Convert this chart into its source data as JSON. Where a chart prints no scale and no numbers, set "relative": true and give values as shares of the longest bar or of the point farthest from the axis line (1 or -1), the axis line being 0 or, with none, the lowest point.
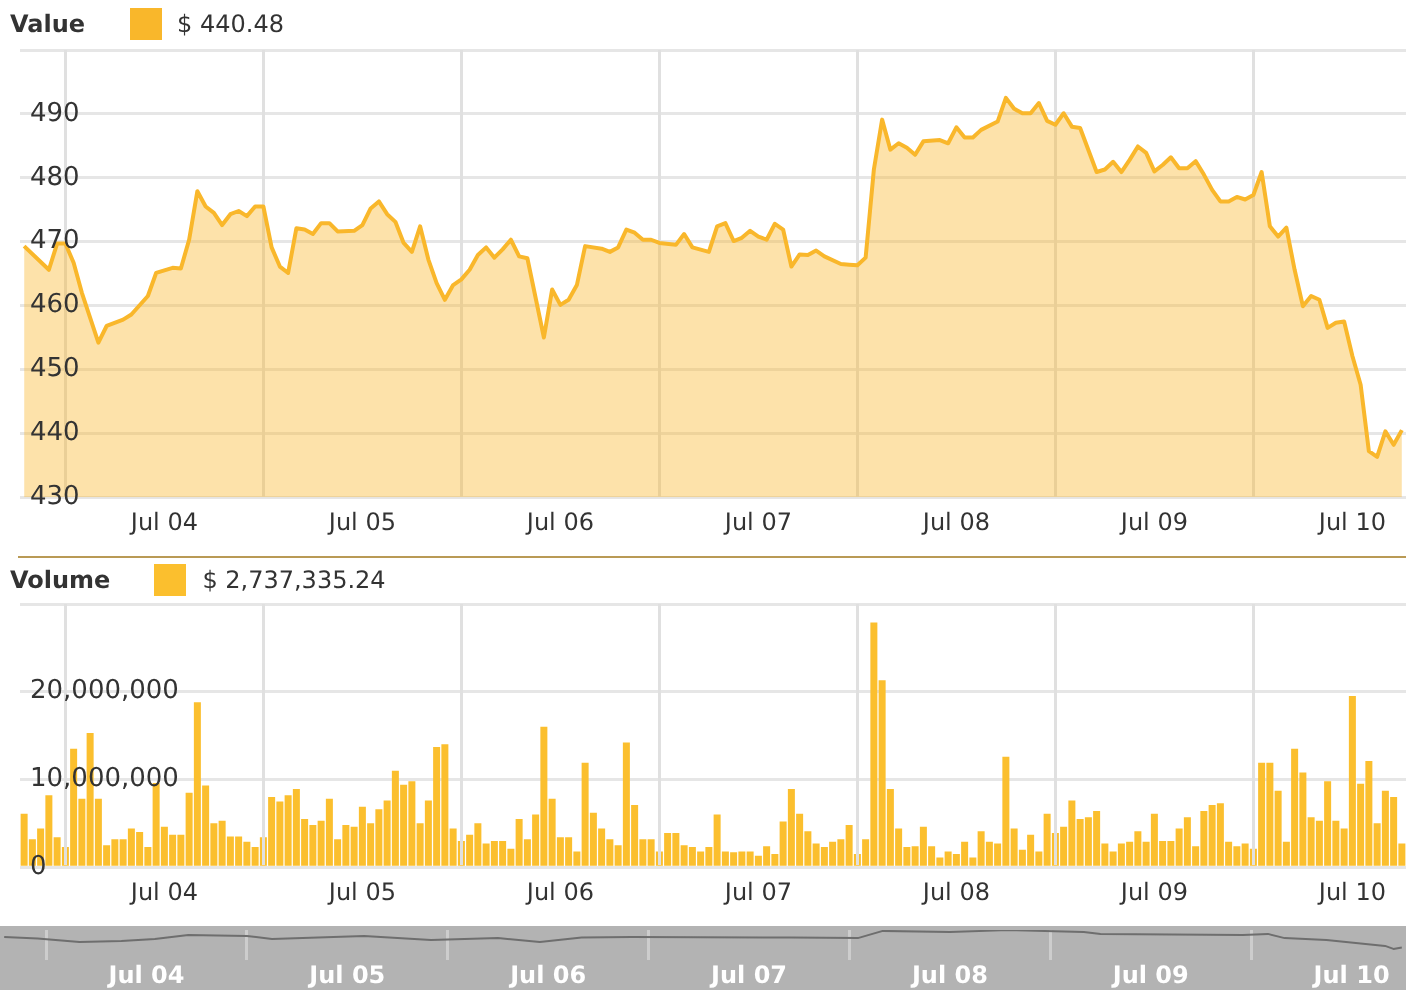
{
  "chart_data": [
    {
      "type": "area",
      "legend": "top left",
      "grid": true,
      "annotations": [
        "$ 440.48"
      ],
      "xlim": [
        "--07-03T18:30",
        "--07-10T18:30"
      ],
      "xticks": [
        {
          "value": "--07-04",
          "label": null
        },
        {
          "value": "--07-04T12:00",
          "label": "Jul 04"
        },
        {
          "value": "--07-05",
          "label": null
        },
        {
          "value": "--07-05T12:00",
          "label": "Jul 05"
        },
        {
          "value": "--07-06",
          "label": null
        },
        {
          "value": "--07-06T12:00",
          "label": "Jul 06"
        },
        {
          "value": "--07-07",
          "label": null
        },
        {
          "value": "--07-07T12:00",
          "label": "Jul 07"
        },
        {
          "value": "--07-08",
          "label": null
        },
        {
          "value": "--07-08T12:00",
          "label": "Jul 08"
        },
        {
          "value": "--07-09",
          "label": null
        },
        {
          "value": "--07-09T12:00",
          "label": "Jul 09"
        },
        {
          "value": "--07-10",
          "label": null
        },
        {
          "value": "--07-10T12:00",
          "label": "Jul 10"
        }
      ],
      "ylim": [
        430,
        500
      ],
      "yticks": [
        430,
        440,
        450,
        460,
        470,
        480,
        490,
        {
          "value": 500,
          "label": null
        }
      ],
      "x": [
        "--07-03T19:00",
        "--07-03T22:00",
        "--07-03T23:00",
        "--07-04T00:00",
        "--07-04T01:00",
        "--07-04T02:00",
        "--07-04T04:00",
        "--07-04T05:00",
        "--07-04T07:00",
        "--07-04T08:00",
        "--07-04T10:00",
        "--07-04T11:00",
        "--07-04T13:00",
        "--07-04T14:00",
        "--07-04T15:00",
        "--07-04T16:00",
        "--07-04T17:00",
        "--07-04T18:00",
        "--07-04T19:00",
        "--07-04T20:00",
        "--07-04T21:00",
        "--07-04T22:00",
        "--07-04T23:00",
        "--07-05T00:00",
        "--07-05T01:00",
        "--07-05T02:00",
        "--07-05T03:00",
        "--07-05T04:00",
        "--07-05T05:00",
        "--07-05T06:00",
        "--07-05T07:00",
        "--07-05T08:00",
        "--07-05T09:00",
        "--07-05T11:00",
        "--07-05T12:00",
        "--07-05T13:00",
        "--07-05T14:00",
        "--07-05T15:00",
        "--07-05T16:00",
        "--07-05T17:00",
        "--07-05T18:00",
        "--07-05T19:00",
        "--07-05T20:00",
        "--07-05T21:00",
        "--07-05T22:00",
        "--07-05T23:00",
        "--07-06T00:00",
        "--07-06T01:00",
        "--07-06T02:00",
        "--07-06T03:00",
        "--07-06T04:00",
        "--07-06T05:00",
        "--07-06T06:00",
        "--07-06T07:00",
        "--07-06T08:00",
        "--07-06T10:00",
        "--07-06T11:00",
        "--07-06T12:00",
        "--07-06T13:00",
        "--07-06T14:00",
        "--07-06T15:00",
        "--07-06T17:00",
        "--07-06T18:00",
        "--07-06T19:00",
        "--07-06T20:00",
        "--07-06T21:00",
        "--07-06T22:00",
        "--07-06T23:00",
        "--07-07T00:00",
        "--07-07T02:00",
        "--07-07T03:00",
        "--07-07T04:00",
        "--07-07T06:00",
        "--07-07T07:00",
        "--07-07T08:00",
        "--07-07T09:00",
        "--07-07T10:00",
        "--07-07T11:00",
        "--07-07T12:00",
        "--07-07T13:00",
        "--07-07T14:00",
        "--07-07T15:00",
        "--07-07T16:00",
        "--07-07T17:00",
        "--07-07T18:00",
        "--07-07T19:00",
        "--07-07T20:00",
        "--07-07T22:00",
        "--07-07T23:00",
        "--07-08T00:00",
        "--07-08T01:00",
        "--07-08T02:00",
        "--07-08T03:00",
        "--07-08T04:00",
        "--07-08T05:00",
        "--07-08T06:00",
        "--07-08T07:00",
        "--07-08T08:00",
        "--07-08T10:00",
        "--07-08T11:00",
        "--07-08T12:00",
        "--07-08T13:00",
        "--07-08T14:00",
        "--07-08T15:00",
        "--07-08T17:00",
        "--07-08T18:00",
        "--07-08T19:00",
        "--07-08T20:00",
        "--07-08T21:00",
        "--07-08T22:00",
        "--07-08T23:00",
        "--07-09T00:00",
        "--07-09T01:00",
        "--07-09T02:00",
        "--07-09T03:00",
        "--07-09T05:00",
        "--07-09T06:00",
        "--07-09T07:00",
        "--07-09T08:00",
        "--07-09T09:00",
        "--07-09T10:00",
        "--07-09T11:00",
        "--07-09T12:00",
        "--07-09T13:00",
        "--07-09T14:00",
        "--07-09T15:00",
        "--07-09T16:00",
        "--07-09T17:00",
        "--07-09T18:00",
        "--07-09T19:00",
        "--07-09T20:00",
        "--07-09T21:00",
        "--07-09T22:00",
        "--07-09T23:00",
        "--07-10T00:00",
        "--07-10T01:00",
        "--07-10T02:00",
        "--07-10T03:00",
        "--07-10T04:00",
        "--07-10T05:00",
        "--07-10T06:00",
        "--07-10T07:00",
        "--07-10T08:00",
        "--07-10T09:00",
        "--07-10T10:00",
        "--07-10T11:00",
        "--07-10T12:00",
        "--07-10T13:00",
        "--07-10T14:00",
        "--07-10T15:00",
        "--07-10T16:00",
        "--07-10T17:00",
        "--07-10T18:00"
      ],
      "series": [
        {
          "name": "Value",
          "color": "#f9b72b",
          "values": [
            469.3,
            465.6,
            469.7,
            469.7,
            466.7,
            462.0,
            454.2,
            456.8,
            457.8,
            458.6,
            461.5,
            465.1,
            465.9,
            465.8,
            470.3,
            477.9,
            475.5,
            474.5,
            472.6,
            474.3,
            474.8,
            474.0,
            475.5,
            475.5,
            469.1,
            466.1,
            465.1,
            472.1,
            471.9,
            471.2,
            472.9,
            472.9,
            471.6,
            471.7,
            472.6,
            475.2,
            476.3,
            474.3,
            473.1,
            469.8,
            468.4,
            472.4,
            467.2,
            463.5,
            460.9,
            463.2,
            464.1,
            465.6,
            467.9,
            469.1,
            467.5,
            468.8,
            470.3,
            467.7,
            467.4,
            455.0,
            462.5,
            460.1,
            460.9,
            463.2,
            469.3,
            468.9,
            468.4,
            469.1,
            471.9,
            471.4,
            470.3,
            470.3,
            469.8,
            469.5,
            471.2,
            469.1,
            468.4,
            472.4,
            472.9,
            470.1,
            470.6,
            471.7,
            470.8,
            470.3,
            472.8,
            471.9,
            466.1,
            468.0,
            467.9,
            468.6,
            467.7,
            466.5,
            466.4,
            466.3,
            467.5,
            481.3,
            489.1,
            484.4,
            485.4,
            484.7,
            483.6,
            485.7,
            485.9,
            485.4,
            487.9,
            486.3,
            486.3,
            487.5,
            488.8,
            492.5,
            490.8,
            490.1,
            490.1,
            491.7,
            488.9,
            488.3,
            490.1,
            488.0,
            487.8,
            480.9,
            481.3,
            482.5,
            480.9,
            482.8,
            484.9,
            483.9,
            481.0,
            482.0,
            483.2,
            481.5,
            481.5,
            482.6,
            480.5,
            478.1,
            476.3,
            476.3,
            477.0,
            476.6,
            477.3,
            480.9,
            472.4,
            470.8,
            472.2,
            465.6,
            459.9,
            461.5,
            460.9,
            456.5,
            457.3,
            457.5,
            452.1,
            447.6,
            437.2,
            436.3,
            440.3,
            438.2,
            440.5
          ]
        }
      ]
    },
    {
      "type": "bar",
      "legend": "top left",
      "grid": true,
      "annotations": [
        "$ 2,737,335.24"
      ],
      "xlim": [
        "--07-03T18:30",
        "--07-10T18:30"
      ],
      "xticks": [
        {
          "value": "--07-04",
          "label": null
        },
        {
          "value": "--07-04T12:00",
          "label": "Jul 04"
        },
        {
          "value": "--07-05",
          "label": null
        },
        {
          "value": "--07-05T12:00",
          "label": "Jul 05"
        },
        {
          "value": "--07-06",
          "label": null
        },
        {
          "value": "--07-06T12:00",
          "label": "Jul 06"
        },
        {
          "value": "--07-07",
          "label": null
        },
        {
          "value": "--07-07T12:00",
          "label": "Jul 07"
        },
        {
          "value": "--07-08",
          "label": null
        },
        {
          "value": "--07-08T12:00",
          "label": "Jul 08"
        },
        {
          "value": "--07-09",
          "label": null
        },
        {
          "value": "--07-09T12:00",
          "label": "Jul 09"
        },
        {
          "value": "--07-10",
          "label": null
        },
        {
          "value": "--07-10T12:00",
          "label": "Jul 10"
        }
      ],
      "ylim": [
        0,
        30000000
      ],
      "yticks": [
        0,
        {
          "value": 10000000,
          "label": "10,000,000"
        },
        {
          "value": 20000000,
          "label": "20,000,000"
        },
        {
          "value": 30000000,
          "label": null
        }
      ],
      "x": [
        "--07-03T19:00",
        "--07-03T20:00",
        "--07-03T21:00",
        "--07-03T22:00",
        "--07-03T23:00",
        "--07-04T00:00",
        "--07-04T01:00",
        "--07-04T02:00",
        "--07-04T03:00",
        "--07-04T04:00",
        "--07-04T05:00",
        "--07-04T06:00",
        "--07-04T07:00",
        "--07-04T08:00",
        "--07-04T09:00",
        "--07-04T10:00",
        "--07-04T11:00",
        "--07-04T12:00",
        "--07-04T13:00",
        "--07-04T14:00",
        "--07-04T15:00",
        "--07-04T16:00",
        "--07-04T17:00",
        "--07-04T18:00",
        "--07-04T19:00",
        "--07-04T20:00",
        "--07-04T21:00",
        "--07-04T22:00",
        "--07-04T23:00",
        "--07-05T00:00",
        "--07-05T01:00",
        "--07-05T02:00",
        "--07-05T03:00",
        "--07-05T04:00",
        "--07-05T05:00",
        "--07-05T06:00",
        "--07-05T07:00",
        "--07-05T08:00",
        "--07-05T09:00",
        "--07-05T10:00",
        "--07-05T11:00",
        "--07-05T12:00",
        "--07-05T13:00",
        "--07-05T14:00",
        "--07-05T15:00",
        "--07-05T16:00",
        "--07-05T17:00",
        "--07-05T18:00",
        "--07-05T19:00",
        "--07-05T20:00",
        "--07-05T21:00",
        "--07-05T22:00",
        "--07-05T23:00",
        "--07-06T00:00",
        "--07-06T01:00",
        "--07-06T02:00",
        "--07-06T03:00",
        "--07-06T04:00",
        "--07-06T05:00",
        "--07-06T06:00",
        "--07-06T07:00",
        "--07-06T08:00",
        "--07-06T09:00",
        "--07-06T10:00",
        "--07-06T11:00",
        "--07-06T12:00",
        "--07-06T13:00",
        "--07-06T14:00",
        "--07-06T15:00",
        "--07-06T16:00",
        "--07-06T17:00",
        "--07-06T18:00",
        "--07-06T19:00",
        "--07-06T20:00",
        "--07-06T21:00",
        "--07-06T22:00",
        "--07-06T23:00",
        "--07-07T00:00",
        "--07-07T01:00",
        "--07-07T02:00",
        "--07-07T03:00",
        "--07-07T04:00",
        "--07-07T05:00",
        "--07-07T06:00",
        "--07-07T07:00",
        "--07-07T08:00",
        "--07-07T09:00",
        "--07-07T10:00",
        "--07-07T11:00",
        "--07-07T12:00",
        "--07-07T13:00",
        "--07-07T14:00",
        "--07-07T15:00",
        "--07-07T16:00",
        "--07-07T17:00",
        "--07-07T18:00",
        "--07-07T19:00",
        "--07-07T20:00",
        "--07-07T21:00",
        "--07-07T22:00",
        "--07-07T23:00",
        "--07-08T00:00",
        "--07-08T01:00",
        "--07-08T02:00",
        "--07-08T03:00",
        "--07-08T04:00",
        "--07-08T05:00",
        "--07-08T06:00",
        "--07-08T07:00",
        "--07-08T08:00",
        "--07-08T09:00",
        "--07-08T10:00",
        "--07-08T11:00",
        "--07-08T12:00",
        "--07-08T13:00",
        "--07-08T14:00",
        "--07-08T15:00",
        "--07-08T16:00",
        "--07-08T17:00",
        "--07-08T18:00",
        "--07-08T19:00",
        "--07-08T20:00",
        "--07-08T21:00",
        "--07-08T22:00",
        "--07-08T23:00",
        "--07-09T00:00",
        "--07-09T01:00",
        "--07-09T02:00",
        "--07-09T03:00",
        "--07-09T04:00",
        "--07-09T05:00",
        "--07-09T06:00",
        "--07-09T07:00",
        "--07-09T08:00",
        "--07-09T09:00",
        "--07-09T10:00",
        "--07-09T11:00",
        "--07-09T12:00",
        "--07-09T13:00",
        "--07-09T14:00",
        "--07-09T15:00",
        "--07-09T16:00",
        "--07-09T17:00",
        "--07-09T18:00",
        "--07-09T19:00",
        "--07-09T20:00",
        "--07-09T21:00",
        "--07-09T22:00",
        "--07-09T23:00",
        "--07-10T00:00",
        "--07-10T01:00",
        "--07-10T02:00",
        "--07-10T03:00",
        "--07-10T04:00",
        "--07-10T05:00",
        "--07-10T06:00",
        "--07-10T07:00",
        "--07-10T08:00",
        "--07-10T09:00",
        "--07-10T10:00",
        "--07-10T11:00",
        "--07-10T12:00",
        "--07-10T13:00",
        "--07-10T14:00",
        "--07-10T15:00",
        "--07-10T16:00",
        "--07-10T17:00",
        "--07-10T18:00"
      ],
      "series": [
        {
          "name": "Volume",
          "color": "#fbbf2e",
          "values": [
            6100000,
            3200000,
            4400000,
            8200000,
            3400000,
            2300000,
            13500000,
            7800000,
            15300000,
            7800000,
            2500000,
            3200000,
            3200000,
            4400000,
            4000000,
            2300000,
            9600000,
            4600000,
            3700000,
            3700000,
            8500000,
            18800000,
            9300000,
            5000000,
            5300000,
            3500000,
            3500000,
            2900000,
            2300000,
            3400000,
            8000000,
            7500000,
            8200000,
            8900000,
            5500000,
            4800000,
            5300000,
            7800000,
            3200000,
            4800000,
            4600000,
            6900000,
            5000000,
            6600000,
            7600000,
            11000000,
            9400000,
            9800000,
            5000000,
            7600000,
            13700000,
            14000000,
            4400000,
            3000000,
            3700000,
            5000000,
            2700000,
            3000000,
            3000000,
            2100000,
            5500000,
            3200000,
            6000000,
            16000000,
            7800000,
            3400000,
            3400000,
            1800000,
            11900000,
            6200000,
            4400000,
            3200000,
            2500000,
            14200000,
            7100000,
            3200000,
            3200000,
            1800000,
            3900000,
            3900000,
            2500000,
            2300000,
            1800000,
            2300000,
            6000000,
            1800000,
            1700000,
            1800000,
            1800000,
            1300000,
            2400000,
            1500000,
            5200000,
            8900000,
            6100000,
            4100000,
            2700000,
            2300000,
            2900000,
            3200000,
            4800000,
            1500000,
            3200000,
            27900000,
            21300000,
            8900000,
            4400000,
            2300000,
            2400000,
            4600000,
            2400000,
            1100000,
            1800000,
            1500000,
            2900000,
            1100000,
            4100000,
            2900000,
            2700000,
            12600000,
            4400000,
            2000000,
            3700000,
            1800000,
            6100000,
            3900000,
            4600000,
            7600000,
            5500000,
            5700000,
            6400000,
            2700000,
            1800000,
            2700000,
            2900000,
            4100000,
            2900000,
            6100000,
            3000000,
            3000000,
            4400000,
            5700000,
            2400000,
            6400000,
            7100000,
            7300000,
            2900000,
            2400000,
            2700000,
            2100000,
            11900000,
            11900000,
            8700000,
            2900000,
            13500000,
            10800000,
            5700000,
            5300000,
            9800000,
            5300000,
            4400000,
            19500000,
            9500000,
            12100000,
            5000000,
            8700000,
            8000000,
            2700000
          ]
        }
      ]
    },
    {
      "type": "line",
      "relative": true,
      "grid": "x",
      "xlim": [
        "--07-03T18:30",
        "--07-10T18:30"
      ],
      "xticks": [
        {
          "value": "--07-04",
          "label": null
        },
        {
          "value": "--07-04T12:00",
          "label": "Jul 04"
        },
        {
          "value": "--07-05",
          "label": null
        },
        {
          "value": "--07-05T12:00",
          "label": "Jul 05"
        },
        {
          "value": "--07-06",
          "label": null
        },
        {
          "value": "--07-06T12:00",
          "label": "Jul 06"
        },
        {
          "value": "--07-07",
          "label": null
        },
        {
          "value": "--07-07T12:00",
          "label": "Jul 07"
        },
        {
          "value": "--07-08",
          "label": null
        },
        {
          "value": "--07-08T12:00",
          "label": "Jul 08"
        },
        {
          "value": "--07-09",
          "label": null
        },
        {
          "value": "--07-09T12:00",
          "label": "Jul 09"
        },
        {
          "value": "--07-10",
          "label": null
        },
        {
          "value": "--07-10T12:00",
          "label": "Jul 10"
        }
      ],
      "x": [
        "--07-03T19:00",
        "--07-03T23:00",
        "--07-04T04:00",
        "--07-04T09:00",
        "--07-04T13:00",
        "--07-04T17:00",
        "--07-05T00:00",
        "--07-05T03:00",
        "--07-05T14:00",
        "--07-05T22:00",
        "--07-06T06:00",
        "--07-06T11:00",
        "--07-06T16:00",
        "--07-06T22:00",
        "--07-07T17:00",
        "--07-08T01:00",
        "--07-08T04:00",
        "--07-08T12:00",
        "--07-08T19:00",
        "--07-09T04:00",
        "--07-09T06:00",
        "--07-09T23:00",
        "--07-10T02:00",
        "--07-10T04:00",
        "--07-10T09:00",
        "--07-10T16:00",
        "--07-10T17:00",
        "--07-10T18:00"
      ],
      "series": [
        {
          "color": "#6e6e6e",
          "values": [
            0.77,
            0.72,
            0.6,
            0.63,
            0.7,
            0.83,
            0.8,
            0.7,
            0.8,
            0.67,
            0.73,
            0.6,
            0.75,
            0.77,
            0.75,
            0.73,
            0.97,
            0.93,
            1,
            0.93,
            0.87,
            0.83,
            0.87,
            0.73,
            0.67,
            0.47,
            0.37,
            0.42
          ]
        }
      ]
    }
  ]
}
